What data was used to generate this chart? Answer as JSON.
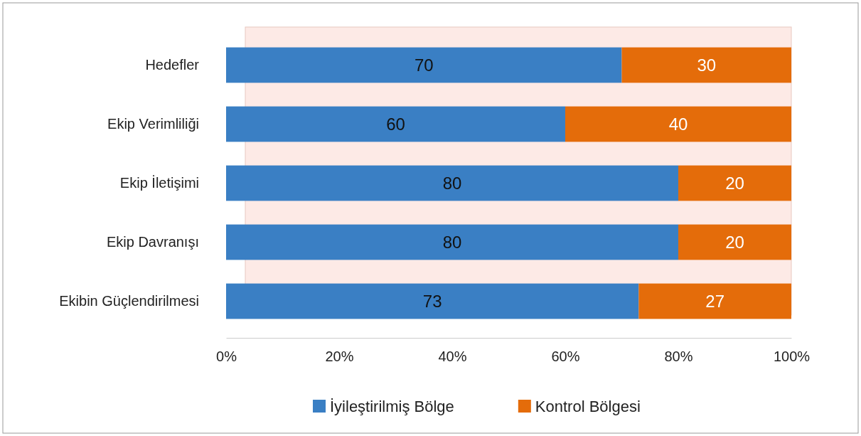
{
  "chart_data": {
    "type": "bar",
    "orientation": "horizontal",
    "stacked": true,
    "categories": [
      "Hedefler",
      "Ekip Verimliliği",
      "Ekip İletişimi",
      "Ekip Davranışı",
      "Ekibin Güçlendirilmesi"
    ],
    "series": [
      {
        "name": "İyileştirilmiş Bölge",
        "color": "#3a7fc4",
        "values": [
          70,
          60,
          80,
          80,
          73
        ]
      },
      {
        "name": "Kontrol Bölgesi",
        "color": "#e46c0a",
        "values": [
          30,
          40,
          20,
          20,
          27
        ]
      }
    ],
    "xlim": [
      0,
      100
    ],
    "xticks": [
      {
        "value": 0,
        "label": "0%"
      },
      {
        "value": 20,
        "label": "20%"
      },
      {
        "value": 40,
        "label": "40%"
      },
      {
        "value": 60,
        "label": "60%"
      },
      {
        "value": 80,
        "label": "80%"
      },
      {
        "value": 100,
        "label": "100%"
      }
    ],
    "data_labels": true,
    "legend": "bottom"
  }
}
